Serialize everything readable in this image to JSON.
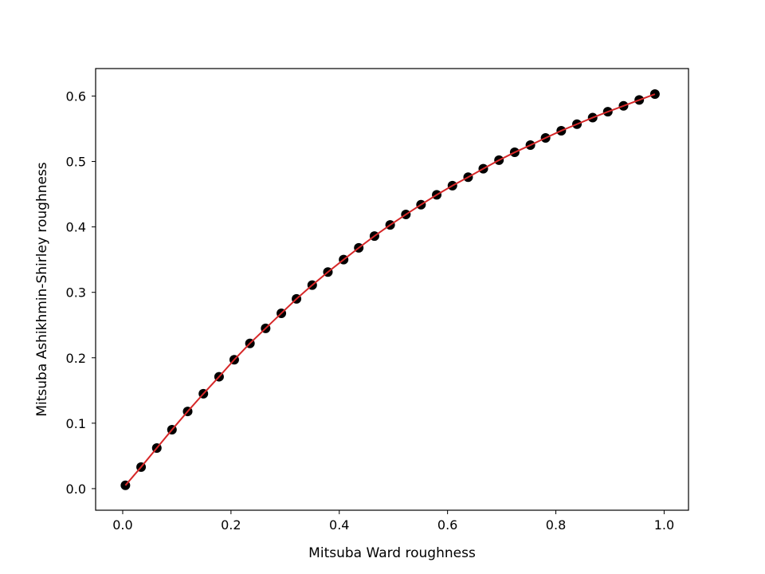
{
  "chart_data": {
    "type": "scatter",
    "xlabel": "Mitsuba Ward roughness",
    "ylabel": "Mitsuba Ashikhmin-Shirley roughness",
    "xlim": [
      -0.05,
      1.045
    ],
    "ylim": [
      -0.033,
      0.642
    ],
    "xticks": [
      0.0,
      0.2,
      0.4,
      0.6,
      0.8,
      1.0
    ],
    "xtick_labels": [
      "0.0",
      "0.2",
      "0.4",
      "0.6",
      "0.8",
      "1.0"
    ],
    "yticks": [
      0.0,
      0.1,
      0.2,
      0.3,
      0.4,
      0.5,
      0.6
    ],
    "ytick_labels": [
      "0.0",
      "0.1",
      "0.2",
      "0.3",
      "0.4",
      "0.5",
      "0.6"
    ],
    "grid": false,
    "series": [
      {
        "kind": "scatter",
        "color": "#000000",
        "x": [
          0.005,
          0.034,
          0.063,
          0.091,
          0.12,
          0.149,
          0.178,
          0.206,
          0.235,
          0.264,
          0.293,
          0.321,
          0.35,
          0.379,
          0.408,
          0.436,
          0.465,
          0.494,
          0.523,
          0.551,
          0.58,
          0.609,
          0.638,
          0.666,
          0.695,
          0.724,
          0.753,
          0.781,
          0.81,
          0.839,
          0.868,
          0.896,
          0.925,
          0.954,
          0.983
        ],
        "y": [
          0.005,
          0.033,
          0.062,
          0.09,
          0.118,
          0.145,
          0.171,
          0.197,
          0.222,
          0.245,
          0.268,
          0.29,
          0.311,
          0.331,
          0.35,
          0.368,
          0.386,
          0.403,
          0.419,
          0.434,
          0.449,
          0.463,
          0.476,
          0.489,
          0.502,
          0.514,
          0.525,
          0.536,
          0.547,
          0.557,
          0.567,
          0.576,
          0.585,
          0.594,
          0.603
        ]
      },
      {
        "kind": "line",
        "color": "#d62728",
        "x": [
          0.005,
          0.034,
          0.063,
          0.091,
          0.12,
          0.149,
          0.178,
          0.206,
          0.235,
          0.264,
          0.293,
          0.321,
          0.35,
          0.379,
          0.408,
          0.436,
          0.465,
          0.494,
          0.523,
          0.551,
          0.58,
          0.609,
          0.638,
          0.666,
          0.695,
          0.724,
          0.753,
          0.781,
          0.81,
          0.839,
          0.868,
          0.896,
          0.925,
          0.954,
          0.983
        ],
        "y": [
          0.005,
          0.033,
          0.062,
          0.09,
          0.118,
          0.145,
          0.171,
          0.197,
          0.222,
          0.245,
          0.268,
          0.29,
          0.311,
          0.331,
          0.35,
          0.368,
          0.386,
          0.403,
          0.419,
          0.434,
          0.449,
          0.463,
          0.476,
          0.489,
          0.502,
          0.514,
          0.525,
          0.536,
          0.547,
          0.557,
          0.567,
          0.576,
          0.585,
          0.594,
          0.603
        ]
      }
    ]
  }
}
